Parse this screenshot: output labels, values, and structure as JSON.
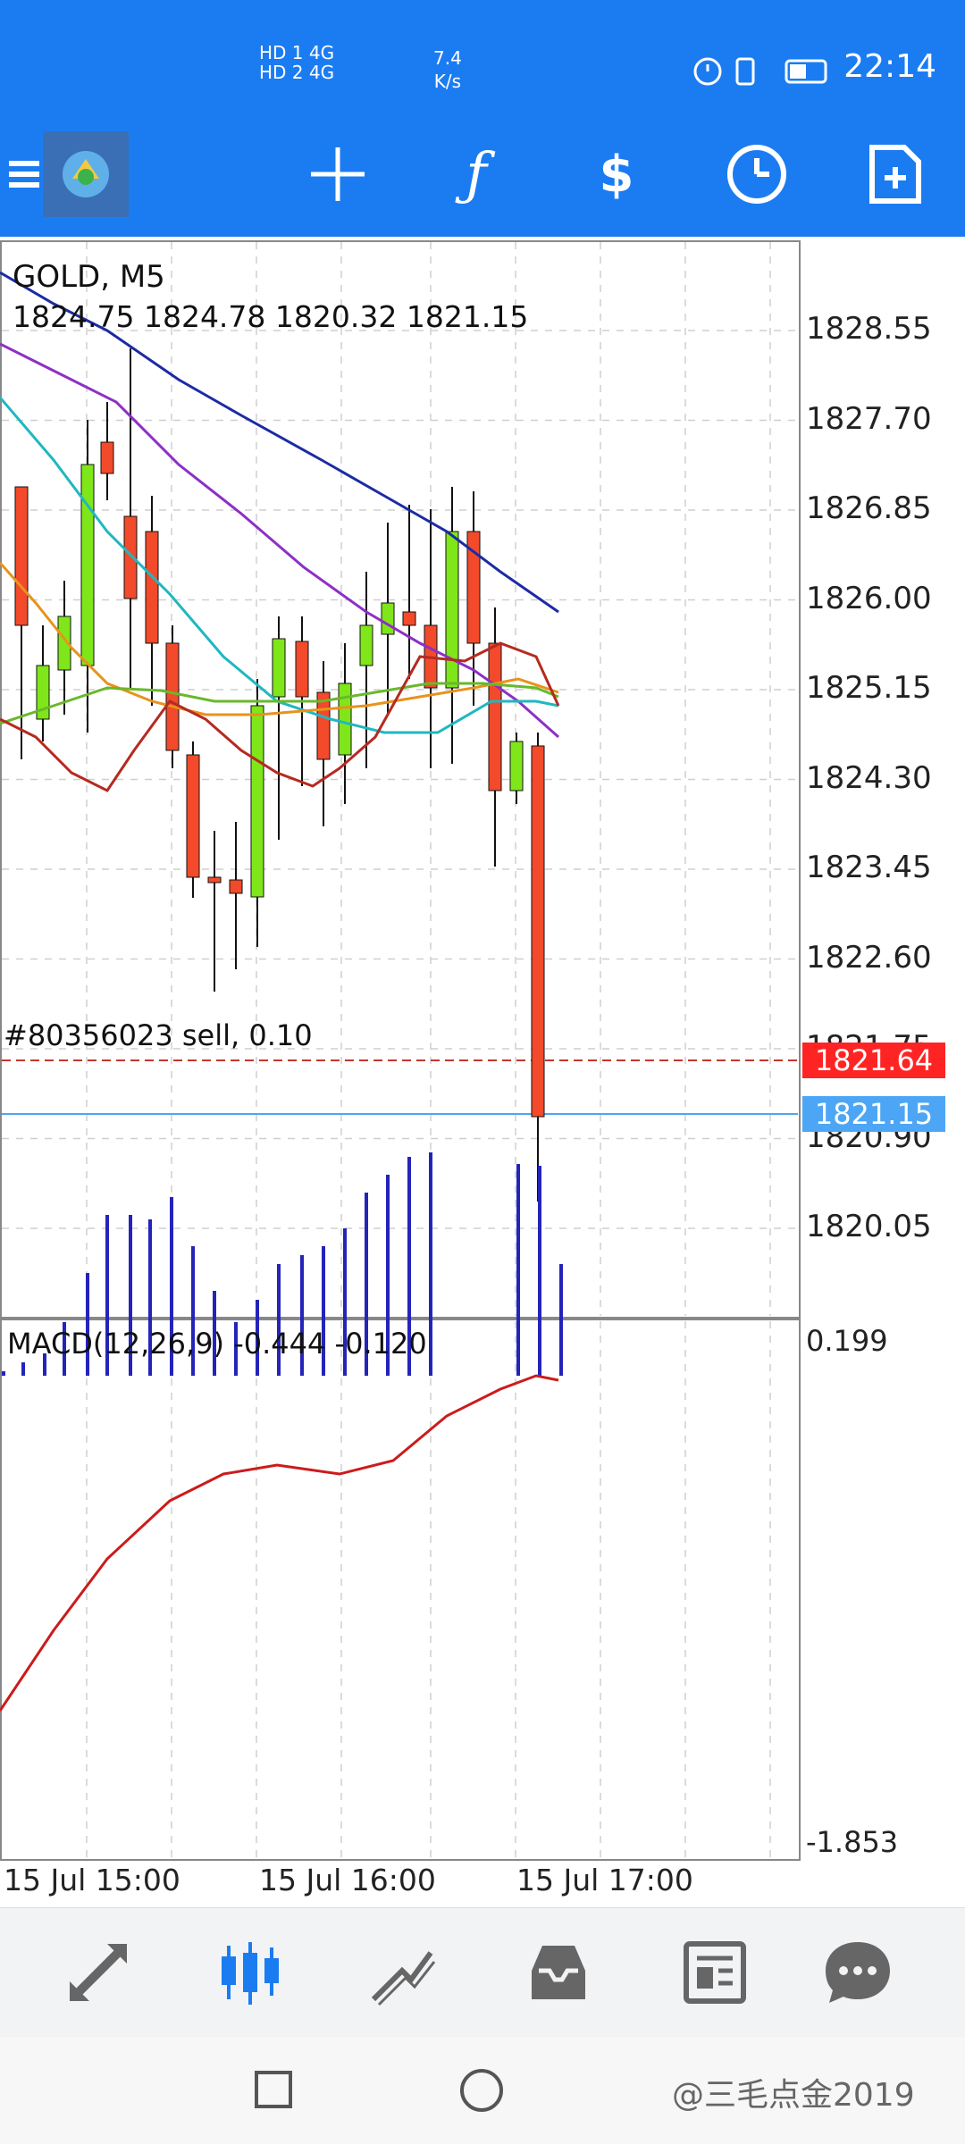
{
  "status_bar": {
    "signal_left_top": "HD 1  4G",
    "signal_left_bottom": "HD 2  4G",
    "speed_value": "7.4",
    "speed_unit": "K/s",
    "time": "22:14"
  },
  "toolbar": {
    "icons": [
      "menu-icon",
      "app-logo-icon",
      "crosshair-icon",
      "function-icon",
      "symbols-icon",
      "timeframe-icon",
      "new-document-icon"
    ]
  },
  "chart": {
    "symbol_title": "GOLD, M5",
    "ohlc": "1824.75 1824.78 1820.32 1821.15",
    "trade_label": "#80356023 sell, 0.10",
    "price_axis": [
      "1828.55",
      "1827.70",
      "1826.85",
      "1826.00",
      "1825.15",
      "1824.30",
      "1823.45",
      "1822.60",
      "1821.75",
      "1820.90",
      "1820.05"
    ],
    "order_price_tag": "1821.64",
    "bid_price_tag": "1821.15",
    "colors": {
      "up": "#7fe61a",
      "down": "#f24a2a",
      "order_tag": "#ff2424",
      "bid_tag": "#4da6f5"
    }
  },
  "macd": {
    "label": "MACD(12,26,9)  -0.444 -0.120",
    "axis_top": "0.199",
    "axis_bottom": "-1.853"
  },
  "time_axis": [
    "15 Jul 15:00",
    "15 Jul 16:00",
    "15 Jul 17:00"
  ],
  "bottom_nav": {
    "items": [
      "quotes-icon",
      "chart-icon",
      "trade-icon",
      "history-icon",
      "news-icon",
      "messages-icon"
    ]
  },
  "system_nav": {
    "watermark": "@三毛点金2019"
  }
}
